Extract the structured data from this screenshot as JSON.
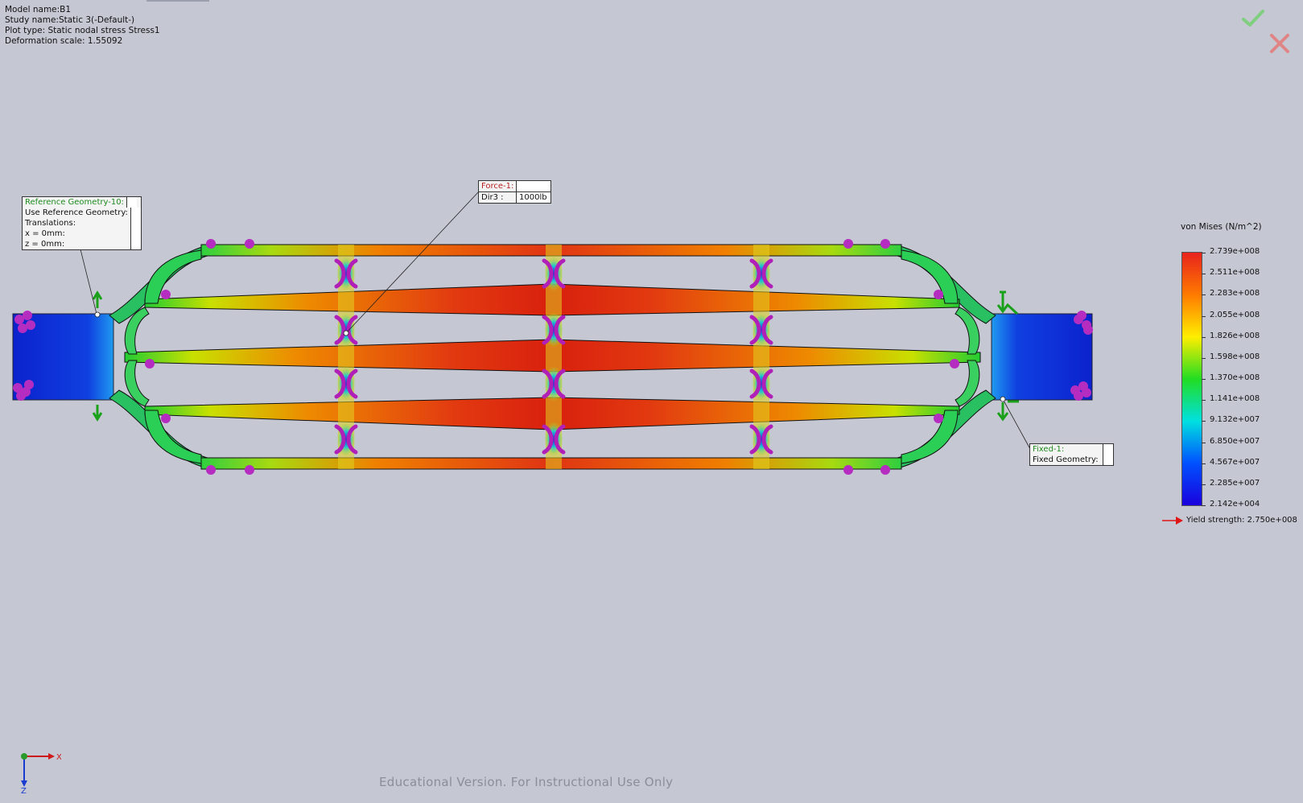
{
  "plot_info": {
    "model_name": "Model name:B1",
    "study_name": "Study name:Static 3(-Default-)",
    "plot_type": "Plot type: Static nodal stress Stress1",
    "deformation_scale": "Deformation scale: 1.55092"
  },
  "toolbar": {
    "ok_icon": "green-check-icon",
    "cancel_icon": "red-x-icon"
  },
  "callouts": {
    "reference_geometry": {
      "title": "Reference Geometry-10:",
      "line1": "Use Reference Geometry:",
      "line2": "Translations:",
      "line3": "x = 0mm:",
      "line4": "z = 0mm:"
    },
    "force": {
      "title": "Force-1:",
      "dir_label": "Dir3 :",
      "dir_value": "1000lb"
    },
    "fixed": {
      "title": "Fixed-1:",
      "line1": "Fixed Geometry:"
    }
  },
  "legend": {
    "title": "von Mises (N/m^2)",
    "ticks": [
      "2.739e+008",
      "2.511e+008",
      "2.283e+008",
      "2.055e+008",
      "1.826e+008",
      "1.598e+008",
      "1.370e+008",
      "1.141e+008",
      "9.132e+007",
      "6.850e+007",
      "4.567e+007",
      "2.285e+007",
      "2.142e+004"
    ],
    "yield_label": "Yield strength: 2.750e+008",
    "colors": [
      "#e8231c",
      "#ff7a00",
      "#ffee00",
      "#22dd22",
      "#00e0e0",
      "#0050ff",
      "#1a00dd"
    ]
  },
  "triad": {
    "x_label": "X",
    "z_label": "Z"
  },
  "watermark": "Educational Version. For Instructional Use Only"
}
